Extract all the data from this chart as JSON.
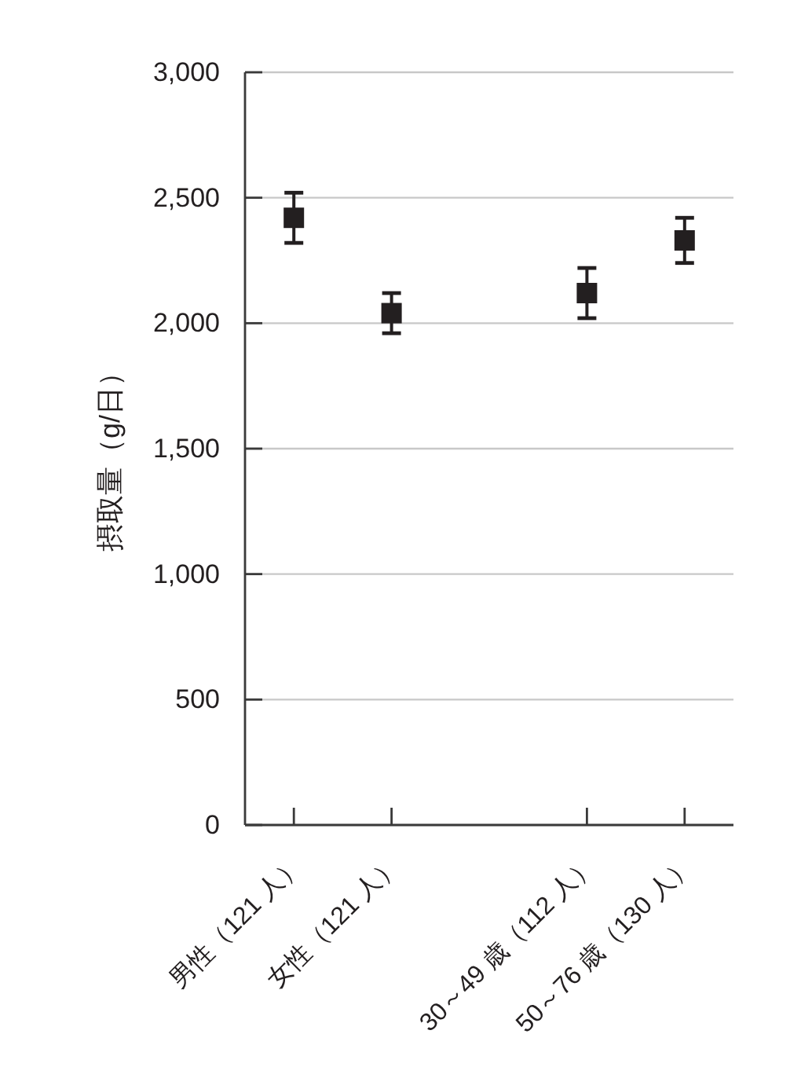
{
  "chart_data": {
    "type": "scatter",
    "ylabel": "摂取量（g/日）",
    "categories": [
      "男性（121 人）",
      "女性（121 人）",
      null,
      "30～49 歳（112 人）",
      "50～76 歳（130 人）"
    ],
    "values": [
      2420,
      2040,
      null,
      2120,
      2330
    ],
    "errors": [
      100,
      80,
      null,
      100,
      90
    ],
    "color": "#231f20",
    "marker": "square",
    "ylim": [
      0,
      3000
    ],
    "yticks": [
      0,
      500,
      {
        "value": 1000,
        "label": "1,000"
      },
      {
        "value": 1500,
        "label": "1,500"
      },
      {
        "value": 2000,
        "label": "2,000"
      },
      {
        "value": 2500,
        "label": "2,500"
      },
      {
        "value": 3000,
        "label": "3,000"
      }
    ],
    "grid": "y"
  }
}
